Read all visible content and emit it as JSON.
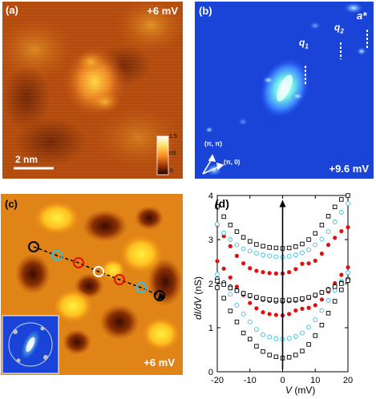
{
  "panel_a": {
    "label": "(a)",
    "bias": "+6 mV",
    "scale_bar": "2 nm",
    "colorbar": {
      "max": "1.5",
      "unit": "nS",
      "min": "0"
    }
  },
  "panel_b": {
    "label": "(b)",
    "bias": "+9.6 mV",
    "q1": "q",
    "q1_sub": "1",
    "q2": "q",
    "q2_sub": "2",
    "astar": "a*",
    "axis_pi_pi": "(π, π)",
    "axis_pi_0": "(π, 0)"
  },
  "panel_c": {
    "label": "(c)",
    "bias": "+6 mV"
  },
  "panel_d": {
    "label": "(d)",
    "xlabel_var": "V",
    "xlabel_unit": "(mV)",
    "ylabel_var": "dI/dV",
    "ylabel_unit": "(nS)"
  },
  "colors": {
    "black": "#000000",
    "cyan": "#30c0e0",
    "red": "#e01010",
    "map_b_bg": "#1540d8"
  },
  "chart_data": {
    "type": "scatter",
    "title": "",
    "xlabel": "V (mV)",
    "ylabel": "dI/dV (nS)",
    "xlim": [
      -20,
      20
    ],
    "ylim": [
      0,
      4
    ],
    "xticks": [
      -20,
      -10,
      0,
      10,
      20
    ],
    "yticks": [
      0,
      1,
      2,
      3,
      4
    ],
    "x": [
      -20,
      -18,
      -16,
      -14,
      -12,
      -10,
      -8,
      -6,
      -4,
      -2,
      0,
      2,
      4,
      6,
      8,
      10,
      12,
      14,
      16,
      18,
      20
    ],
    "series": [
      {
        "marker": "square",
        "color": "black",
        "y": [
          1.91,
          1.67,
          1.38,
          1.13,
          0.88,
          0.74,
          0.58,
          0.46,
          0.38,
          0.34,
          0.31,
          0.33,
          0.38,
          0.47,
          0.62,
          0.82,
          1.06,
          1.33,
          1.6,
          1.86,
          2.08
        ]
      },
      {
        "marker": "circle",
        "color": "cyan",
        "y": [
          2.21,
          2.0,
          1.76,
          1.51,
          1.31,
          1.13,
          0.96,
          0.84,
          0.79,
          0.75,
          0.74,
          0.76,
          0.8,
          0.88,
          1.01,
          1.18,
          1.39,
          1.62,
          1.85,
          2.06,
          2.25
        ]
      },
      {
        "marker": "dot",
        "color": "red",
        "y": [
          2.51,
          2.34,
          2.14,
          1.93,
          1.74,
          1.56,
          1.44,
          1.35,
          1.31,
          1.29,
          1.28,
          1.31,
          1.39,
          1.43,
          1.45,
          1.51,
          1.64,
          1.82,
          2.01,
          2.2,
          2.37
        ]
      },
      {
        "marker": "circle",
        "color": "black",
        "y": [
          2.11,
          2.02,
          1.93,
          1.85,
          1.78,
          1.72,
          1.68,
          1.64,
          1.62,
          1.6,
          1.6,
          1.61,
          1.62,
          1.64,
          1.68,
          1.73,
          1.8,
          1.87,
          1.94,
          2.02,
          2.1
        ]
      },
      {
        "marker": "square",
        "color": "black",
        "y": [
          2.06,
          1.98,
          1.9,
          1.84,
          1.78,
          1.73,
          1.69,
          1.66,
          1.64,
          1.63,
          1.62,
          1.63,
          1.64,
          1.66,
          1.69,
          1.74,
          1.8,
          1.86,
          1.93,
          2.0,
          2.07
        ]
      },
      {
        "marker": "dot",
        "color": "red",
        "y": [
          3.33,
          3.08,
          2.85,
          2.63,
          2.46,
          2.35,
          2.29,
          2.26,
          2.24,
          2.23,
          2.23,
          2.26,
          2.33,
          2.45,
          2.46,
          2.52,
          2.68,
          2.88,
          3.04,
          3.19,
          3.28
        ]
      },
      {
        "marker": "circle",
        "color": "cyan",
        "y": [
          3.35,
          3.15,
          3.0,
          2.88,
          2.79,
          2.74,
          2.69,
          2.65,
          2.63,
          2.61,
          2.6,
          2.62,
          2.65,
          2.7,
          2.77,
          2.88,
          3.01,
          3.18,
          3.4,
          3.62,
          3.82
        ]
      },
      {
        "marker": "square",
        "color": "black",
        "y": [
          3.75,
          3.52,
          3.33,
          3.18,
          3.05,
          2.96,
          2.89,
          2.85,
          2.82,
          2.81,
          2.8,
          2.81,
          2.84,
          2.9,
          3.0,
          3.14,
          3.33,
          3.53,
          3.74,
          3.91,
          4.0
        ]
      }
    ],
    "arrow": {
      "x": 0,
      "from_y": 0.05,
      "to_y": 3.9
    }
  }
}
